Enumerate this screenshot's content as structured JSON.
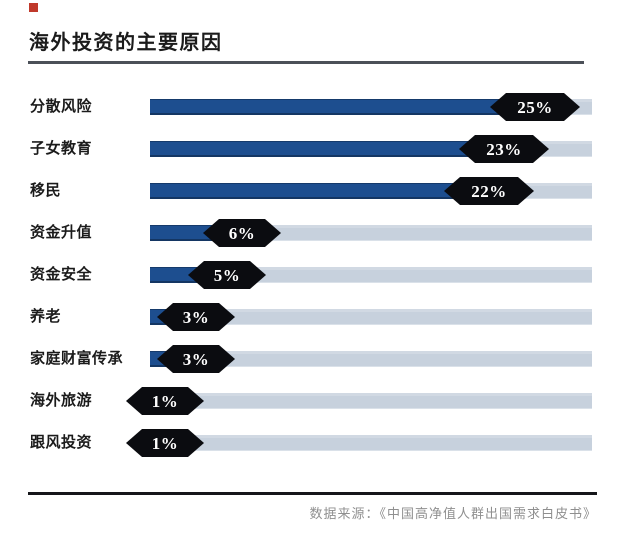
{
  "header": {
    "title": "海外投资的主要原因"
  },
  "chart_data": {
    "type": "bar",
    "orientation": "horizontal",
    "title": "海外投资的主要原因",
    "categories": [
      "分散风险",
      "子女教育",
      "移民",
      "资金升值",
      "资金安全",
      "养老",
      "家庭财富传承",
      "海外旅游",
      "跟风投资"
    ],
    "values": [
      25,
      23,
      22,
      6,
      5,
      3,
      3,
      1,
      1
    ],
    "value_labels": [
      "25%",
      "23%",
      "22%",
      "6%",
      "5%",
      "3%",
      "3%",
      "1%",
      "1%"
    ],
    "unit": "%",
    "xlim": [
      0,
      28.7
    ],
    "grid": false,
    "legend": false,
    "value_label_style": "black hexagon badge at bar end"
  },
  "footer": {
    "source": "数据来源：《中国高净值人群出国需求白皮书》"
  },
  "colors": {
    "bar_fill": "#1d4e8f",
    "bar_track": "#c7d1dd",
    "badge_bg": "#0b0c10",
    "badge_text": "#ffffff",
    "accent_red": "#c0392b",
    "title_rule": "#4b5058",
    "footer_rule": "#15161a",
    "source_text": "#8f8f8f"
  }
}
